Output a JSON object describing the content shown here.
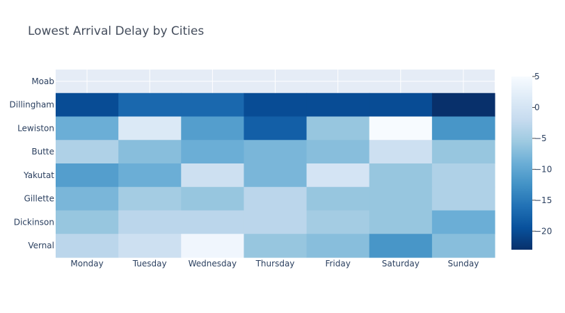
{
  "chart_data": {
    "type": "heatmap",
    "title": "Lowest Arrival Delay by Cities",
    "xlabel": "",
    "ylabel": "",
    "x": [
      "Monday",
      "Tuesday",
      "Wednesday",
      "Thursday",
      "Friday",
      "Saturday",
      "Sunday"
    ],
    "y": [
      "Moab",
      "Dillingham",
      "Lewiston",
      "Butte",
      "Yakutat",
      "Gillette",
      "Dickinson",
      "Vernal"
    ],
    "z": [
      [
        null,
        null,
        null,
        null,
        null,
        null,
        null
      ],
      [
        -20,
        -17,
        -17,
        -20,
        -20,
        -20,
        -23
      ],
      [
        -9,
        1,
        -11,
        -18,
        -6,
        5,
        -12
      ],
      [
        -4,
        -7,
        -9,
        -8,
        -7,
        -1,
        -6
      ],
      [
        -11,
        -9,
        -1,
        -8,
        0,
        -6,
        -4
      ],
      [
        -8,
        -5,
        -6,
        -3,
        -6,
        -6,
        -4
      ],
      [
        -6,
        -3,
        -3,
        -3,
        -5,
        -6,
        -9
      ],
      [
        -3,
        -1,
        4,
        -6,
        -7,
        -12,
        -7
      ]
    ],
    "colorscale": "Blues (reversed)",
    "zlim": [
      -23,
      5
    ],
    "colorbar_ticks": [
      "5",
      "0",
      "−5",
      "−10",
      "−15",
      "−20"
    ],
    "colorbar_tick_values": [
      5,
      0,
      -5,
      -10,
      -15,
      -20
    ],
    "grid": true,
    "colors": {
      "plot_background": "#e5ecf6",
      "grid": "#ffffff",
      "text": "#2a3f5f",
      "title": "#444d5c",
      "scale": [
        "#08306b",
        "#08519c",
        "#2171b5",
        "#4292c6",
        "#6baed6",
        "#9ecae1",
        "#c6dbef",
        "#deebf7",
        "#f7fbff"
      ]
    }
  }
}
